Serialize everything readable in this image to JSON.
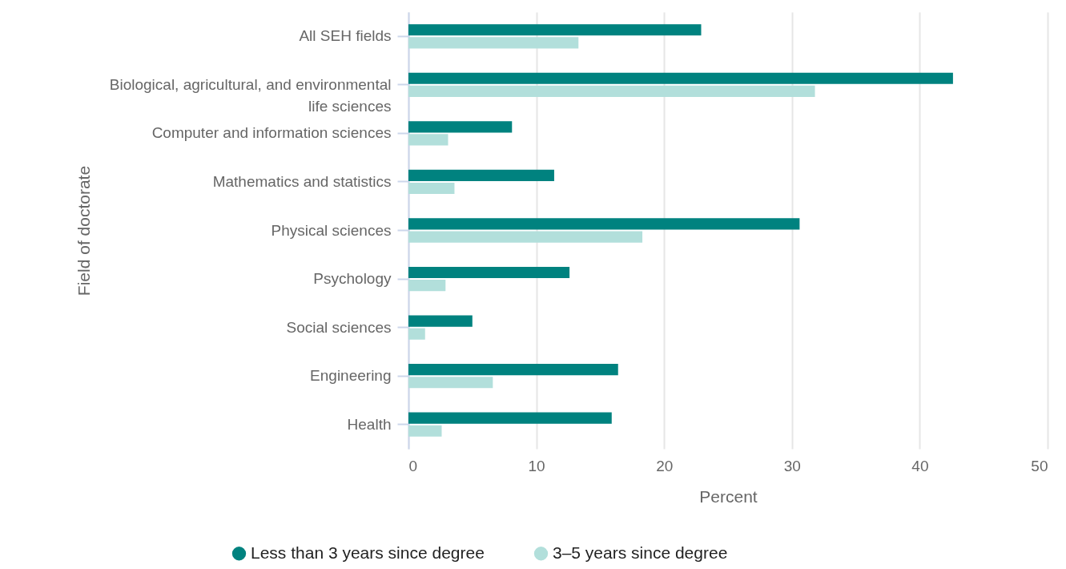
{
  "chart_data": {
    "type": "bar",
    "orientation": "horizontal",
    "xlabel": "Percent",
    "ylabel": "Field of doctorate",
    "categories": [
      "All SEH fields",
      "Biological, agricultural, and environmental life sciences",
      "Computer and information sciences",
      "Mathematics and statistics",
      "Physical sciences",
      "Psychology",
      "Social sciences",
      "Engineering",
      "Health"
    ],
    "series": [
      {
        "name": "Less than 3 years since degree",
        "color": "#00827f",
        "values": [
          22.9,
          42.6,
          8.1,
          11.4,
          30.6,
          12.6,
          5.0,
          16.4,
          15.9
        ]
      },
      {
        "name": "3–5 years since degree",
        "color": "#b2dfdb",
        "values": [
          13.3,
          31.8,
          3.1,
          3.6,
          18.3,
          2.9,
          1.3,
          6.6,
          2.6
        ]
      }
    ],
    "xlim": [
      0,
      50
    ],
    "xticks": [
      0,
      10,
      20,
      30,
      40,
      50
    ],
    "grid": "x",
    "legend": "bottom"
  }
}
